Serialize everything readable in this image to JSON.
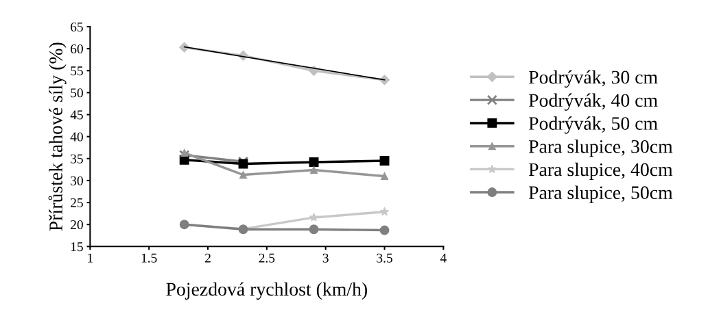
{
  "chart_data": {
    "type": "line",
    "xlabel": "Pojezdová rychlost (km/h)",
    "ylabel": "Přírůstek tahové síly (%)",
    "x": [
      1.8,
      2.3,
      2.9,
      3.5
    ],
    "xlim": [
      1,
      4
    ],
    "xticks": [
      1,
      1.5,
      2,
      2.5,
      3,
      3.5,
      4
    ],
    "ylim": [
      15,
      65
    ],
    "yticks": [
      15,
      20,
      25,
      30,
      35,
      40,
      45,
      50,
      55,
      60,
      65
    ],
    "grid": false,
    "legend": "right",
    "series": [
      {
        "name": "Podrývák, 30 cm",
        "color": "#c0c0c0",
        "marker": "diamond",
        "values": [
          60.3,
          58.4,
          55.0,
          52.9
        ]
      },
      {
        "name": "Podrývák, 40 cm",
        "color": "#808080",
        "marker": "cross",
        "values": [
          35.8,
          34.3,
          null,
          null
        ]
      },
      {
        "name": "Podrývák, 50 cm",
        "color": "#000000",
        "marker": "square",
        "values": [
          34.7,
          33.8,
          34.2,
          34.5
        ]
      },
      {
        "name": "Para slupice, 30cm",
        "color": "#969696",
        "marker": "triangle",
        "values": [
          36.3,
          31.3,
          32.4,
          31.0
        ]
      },
      {
        "name": "Para slupice, 40cm",
        "color": "#c8c8c8",
        "marker": "star",
        "values": [
          20.0,
          19.0,
          21.6,
          22.9
        ]
      },
      {
        "name": "Para slupice, 50cm",
        "color": "#7f7f7f",
        "marker": "circle",
        "values": [
          20.0,
          18.9,
          18.9,
          18.7
        ]
      },
      {
        "type": "line",
        "color": "#000000",
        "marker": "none",
        "x": [
          1.8,
          3.5
        ],
        "values": [
          60.4,
          52.9
        ]
      }
    ]
  }
}
